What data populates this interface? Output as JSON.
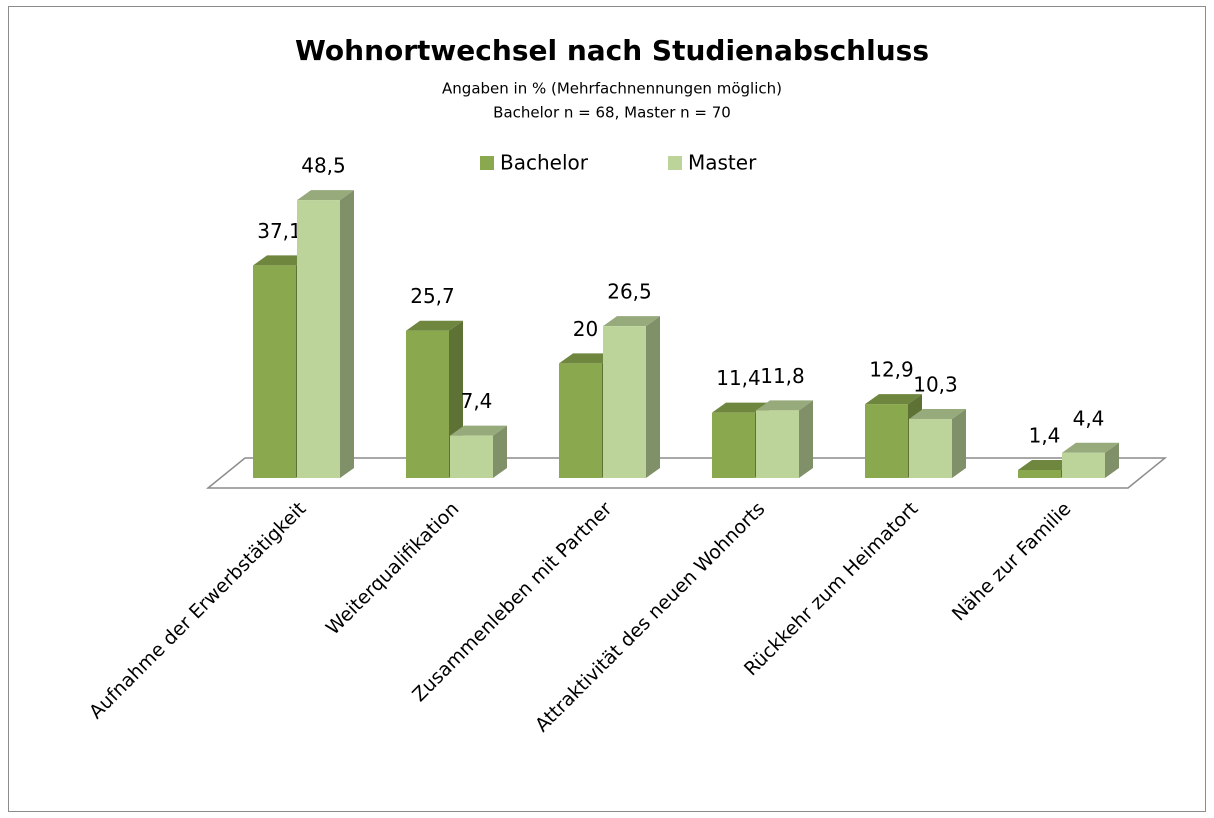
{
  "chart_data": {
    "type": "bar3d",
    "title": "Wohnortwechsel nach Studienabschluss",
    "subtitle": [
      "Angaben in % (Mehrfachnennungen möglich)",
      "Bachelor n = 68, Master n = 70"
    ],
    "categories": [
      "Aufnahme der Erwerbstätigkeit",
      "Weiterqualifikation",
      "Zusammenleben mit Partner",
      "Attraktivität des neuen Wohnorts",
      "Rückkehr zum Heimatort",
      "Nähe zur Familie"
    ],
    "series": [
      {
        "name": "Bachelor",
        "color": "#8aa84e",
        "values": [
          37.1,
          25.7,
          20,
          11.4,
          12.9,
          1.4
        ],
        "value_labels": [
          "37,1",
          "25,7",
          "20",
          "11,4",
          "12,9",
          "1,4"
        ]
      },
      {
        "name": "Master",
        "color": "#bcd49a",
        "values": [
          48.5,
          7.4,
          26.5,
          11.8,
          10.3,
          4.4
        ],
        "value_labels": [
          "48,5",
          "7,4",
          "26,5",
          "11,8",
          "10,3",
          "4,4"
        ]
      }
    ],
    "legend": "top"
  }
}
